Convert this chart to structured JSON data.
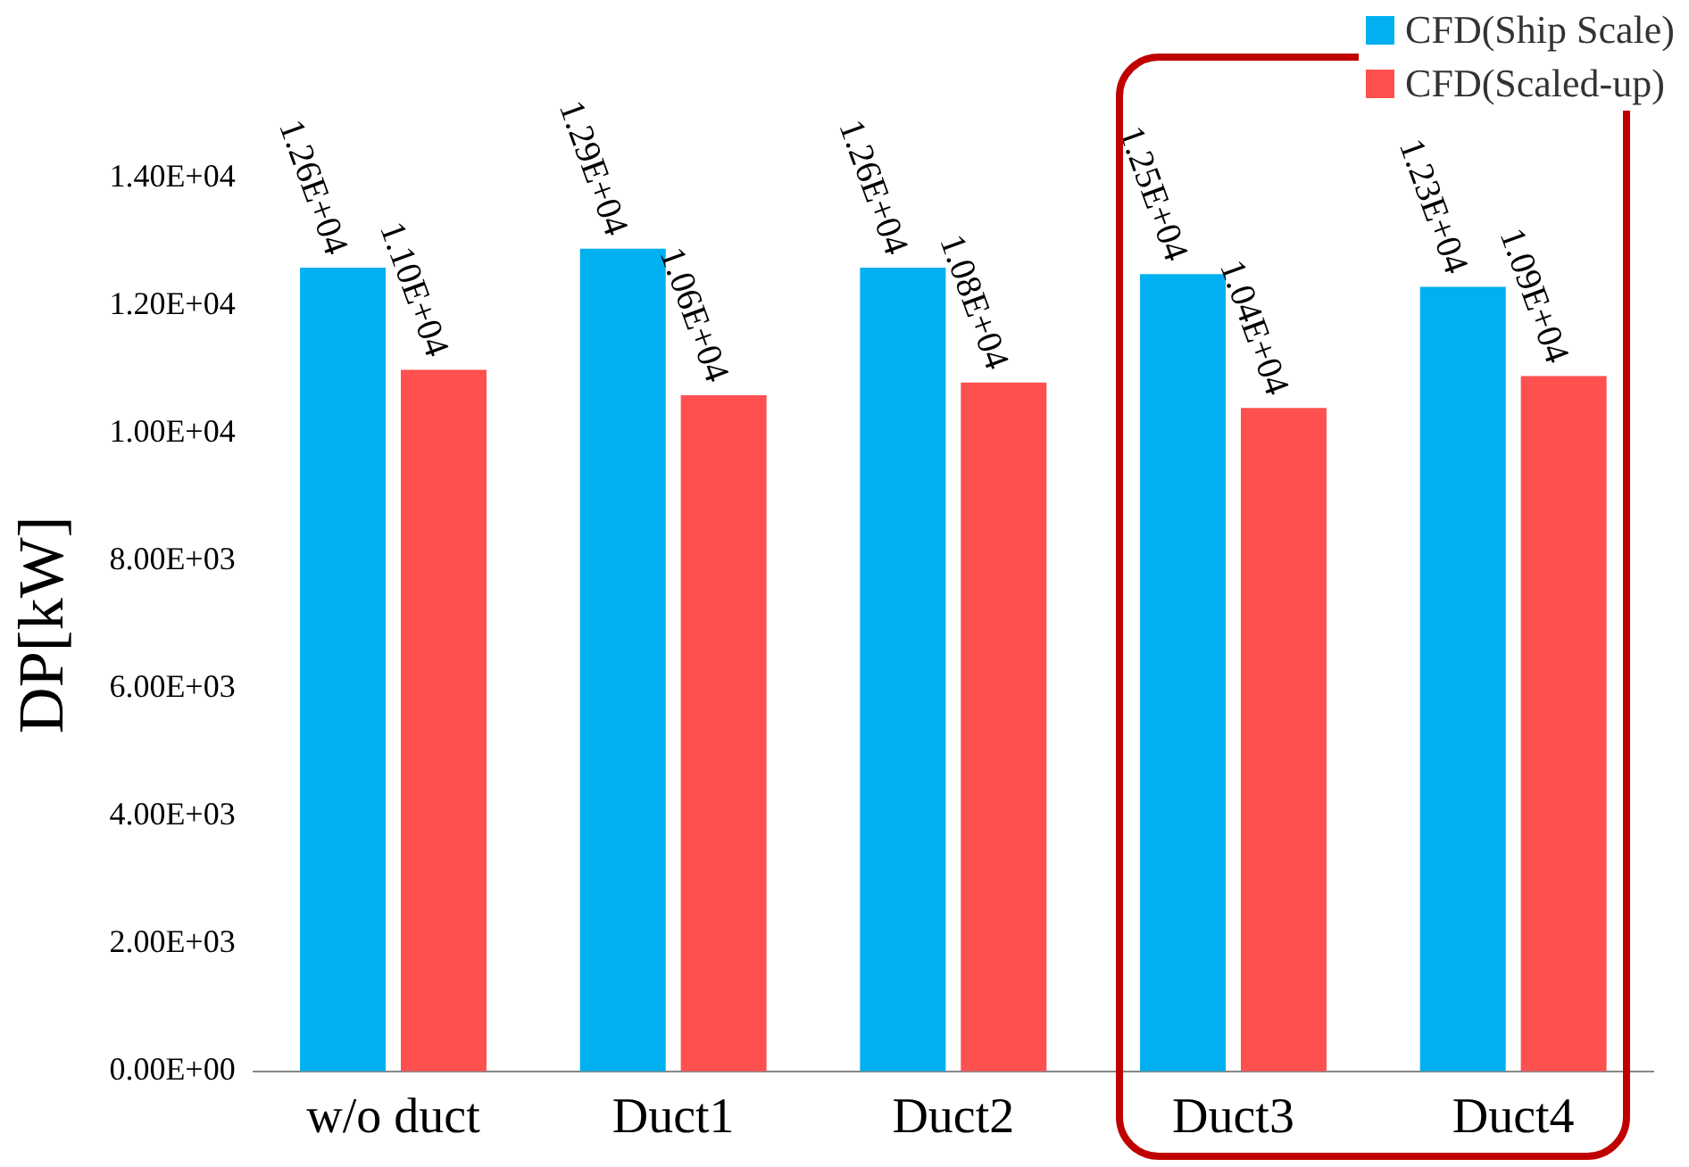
{
  "chart_data": {
    "type": "bar",
    "ylabel": "DP[kW]",
    "categories": [
      "w/o duct",
      "Duct1",
      "Duct2",
      "Duct3",
      "Duct4"
    ],
    "series": [
      {
        "name": "CFD(Ship Scale)",
        "color": "#00b0f0",
        "values": [
          12600,
          12900,
          12600,
          12500,
          12300
        ],
        "value_labels": [
          "1.26E+04",
          "1.29E+04",
          "1.26E+04",
          "1.25E+04",
          "1.23E+04"
        ]
      },
      {
        "name": "CFD(Scaled-up)",
        "color": "#ff5050",
        "values": [
          11000,
          10600,
          10800,
          10400,
          10900
        ],
        "value_labels": [
          "1.10E+04",
          "1.06E+04",
          "1.08E+04",
          "1.04E+04",
          "1.09E+04"
        ]
      }
    ],
    "ylim": [
      0,
      14000
    ],
    "yticks": [
      {
        "value": 0,
        "label": "0.00E+00"
      },
      {
        "value": 2000,
        "label": "2.00E+03"
      },
      {
        "value": 4000,
        "label": "4.00E+03"
      },
      {
        "value": 6000,
        "label": "6.00E+03"
      },
      {
        "value": 8000,
        "label": "8.00E+03"
      },
      {
        "value": 10000,
        "label": "1.00E+04"
      },
      {
        "value": 12000,
        "label": "1.20E+04"
      },
      {
        "value": 14000,
        "label": "1.40E+04"
      }
    ],
    "grid": false,
    "legend": "top right"
  }
}
